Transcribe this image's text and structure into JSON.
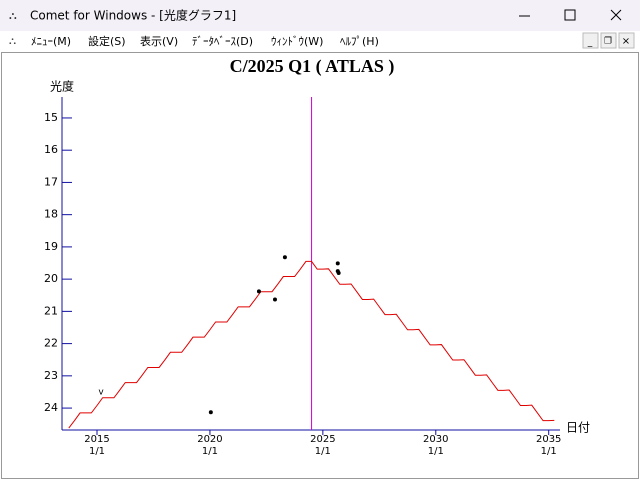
{
  "window": {
    "title": "Comet for Windows - [光度グラフ1]",
    "menu": [
      "ﾒﾆｭｰ(M)",
      "設定(S)",
      "表示(V)",
      "ﾃﾞｰﾀﾍﾞｰｽ(D)",
      "ｳｨﾝﾄﾞｳ(W)",
      "ﾍﾙﾌﾟ(H)"
    ]
  },
  "chart_data": {
    "type": "line",
    "title": "C/2025 Q1 ( ATLAS )",
    "y_label": "光度",
    "x_label": "日付",
    "xlim": [
      2013.45,
      2035.5
    ],
    "ylim": [
      24.68,
      14.35
    ],
    "xticks": [
      2015,
      2020,
      2025,
      2030,
      2035
    ],
    "xtick_dates": [
      "1/1",
      "1/1",
      "1/1",
      "1/1",
      "1/1"
    ],
    "yticks": [
      15,
      16,
      17,
      18,
      19,
      20,
      21,
      22,
      23,
      24
    ],
    "x": [
      2013.75,
      2014,
      2014.25,
      2014.5,
      2014.75,
      2015,
      2015.25,
      2015.5,
      2015.75,
      2016,
      2016.25,
      2016.5,
      2016.75,
      2017,
      2017.25,
      2017.5,
      2017.75,
      2018,
      2018.25,
      2018.5,
      2018.75,
      2019,
      2019.25,
      2019.5,
      2019.75,
      2020,
      2020.25,
      2020.5,
      2020.75,
      2021,
      2021.25,
      2021.5,
      2021.75,
      2022,
      2022.25,
      2022.5,
      2022.75,
      2023,
      2023.25,
      2023.5,
      2023.75,
      2024,
      2024.25,
      2024.5,
      2024.75,
      2025,
      2025.25,
      2025.5,
      2025.75,
      2026,
      2026.25,
      2026.5,
      2026.75,
      2027,
      2027.25,
      2027.5,
      2027.75,
      2028,
      2028.25,
      2028.5,
      2028.75,
      2029,
      2029.25,
      2029.5,
      2029.75,
      2030,
      2030.25,
      2030.5,
      2030.75,
      2031,
      2031.25,
      2031.5,
      2031.75,
      2032,
      2032.25,
      2032.5,
      2032.75,
      2033,
      2033.25,
      2033.5,
      2033.75,
      2034,
      2034.25,
      2034.5,
      2034.75,
      2035,
      2035.25
    ],
    "series": [
      {
        "color": "#e00000",
        "values": [
          24.62,
          24.39,
          24.15,
          24.15,
          24.15,
          23.92,
          23.68,
          23.68,
          23.68,
          23.45,
          23.21,
          23.21,
          23.21,
          22.98,
          22.74,
          22.74,
          22.74,
          22.51,
          22.27,
          22.27,
          22.27,
          22.04,
          21.8,
          21.8,
          21.8,
          21.57,
          21.33,
          21.33,
          21.33,
          21.1,
          20.86,
          20.86,
          20.86,
          20.63,
          20.39,
          20.39,
          20.39,
          20.16,
          19.92,
          19.92,
          19.92,
          19.69,
          19.45,
          19.45,
          19.69,
          19.69,
          19.68,
          19.92,
          20.16,
          20.16,
          20.15,
          20.39,
          20.63,
          20.63,
          20.62,
          20.86,
          21.1,
          21.1,
          21.09,
          21.33,
          21.57,
          21.57,
          21.56,
          21.8,
          22.04,
          22.04,
          22.03,
          22.27,
          22.51,
          22.51,
          22.5,
          22.74,
          22.98,
          22.98,
          22.97,
          23.21,
          23.45,
          23.45,
          23.44,
          23.68,
          23.92,
          23.92,
          23.91,
          24.15,
          24.39,
          24.39,
          24.38
        ]
      }
    ],
    "observations": {
      "color": "#000000",
      "x": [
        2020.04,
        2022.17,
        2022.88,
        2023.32,
        2025.66,
        2025.66,
        2025.7
      ],
      "values": [
        24.13,
        20.38,
        20.63,
        19.32,
        19.51,
        19.75,
        19.81
      ]
    },
    "annotation": "v",
    "marker_line": {
      "x": 2024.5,
      "color": "#d000d0"
    },
    "axis_color": "#1010a0"
  }
}
